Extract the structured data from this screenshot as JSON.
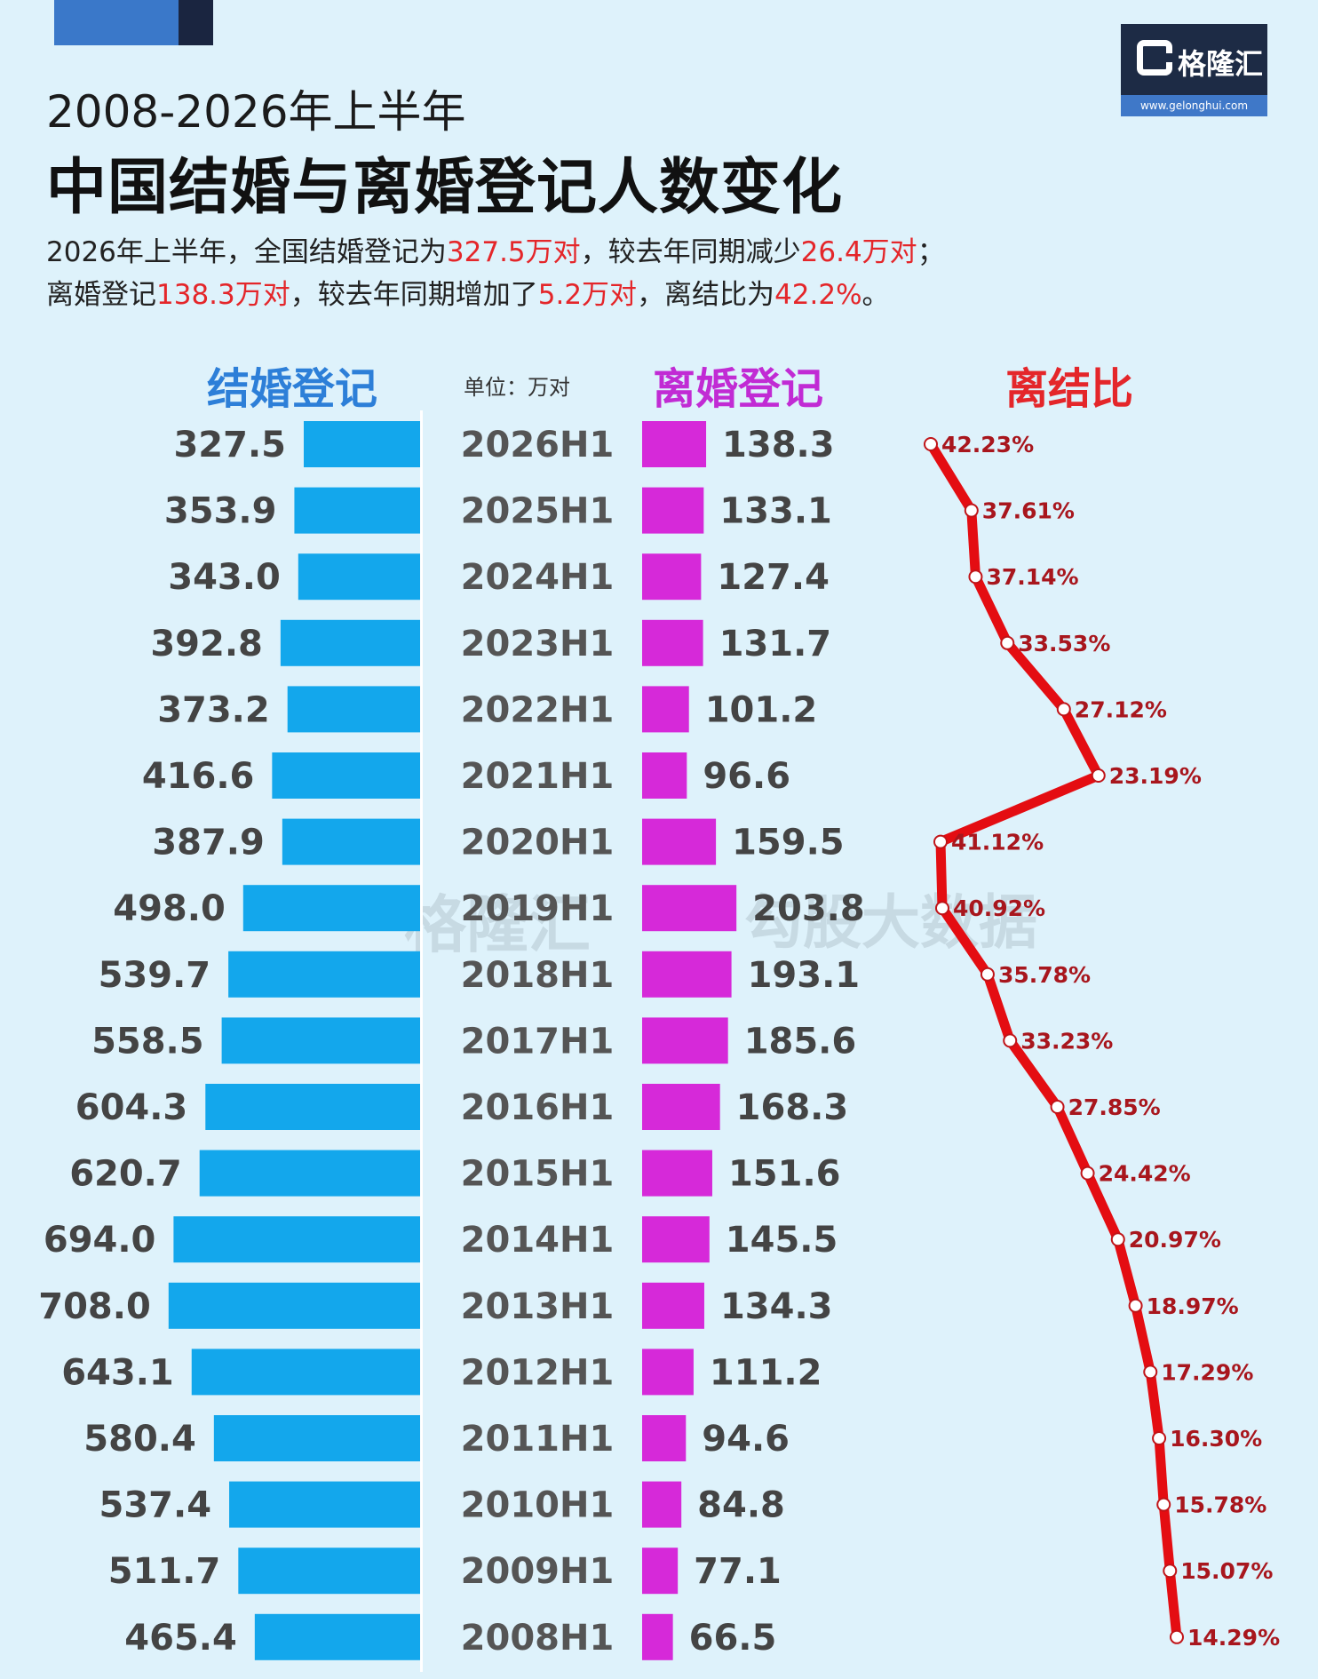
{
  "header": {
    "subtitle": "2008-2026年上半年",
    "title": "中国结婚与离婚登记人数变化",
    "desc_line1": [
      {
        "text": "2026年上半年，全国结婚登记为",
        "red": false
      },
      {
        "text": "327.5万对",
        "red": true
      },
      {
        "text": "，较去年同期减少",
        "red": false
      },
      {
        "text": "26.4万对",
        "red": true
      },
      {
        "text": "；",
        "red": false
      }
    ],
    "desc_line2": [
      {
        "text": "离婚登记",
        "red": false
      },
      {
        "text": "138.3万对",
        "red": true
      },
      {
        "text": "，较去年同期增加了",
        "red": false
      },
      {
        "text": "5.2万对",
        "red": true
      },
      {
        "text": "，离结比为",
        "red": false
      },
      {
        "text": "42.2%",
        "red": true
      },
      {
        "text": "。",
        "red": false
      }
    ]
  },
  "logo": {
    "name": "格隆汇",
    "url": "www.gelonghui.com"
  },
  "watermark": {
    "left": "格隆汇",
    "right": "勾股大数据",
    "right_url": "www.gogudata.com"
  },
  "colors": {
    "marriage": "#13a7ec",
    "divorce": "#d629d9",
    "ratio": "#e40d12"
  },
  "chart_data": {
    "type": "bar",
    "headers": {
      "marriage": "结婚登记",
      "unit": "单位：万对",
      "divorce": "离婚登记",
      "ratio": "离结比"
    },
    "categories": [
      "2026H1",
      "2025H1",
      "2024H1",
      "2023H1",
      "2022H1",
      "2021H1",
      "2020H1",
      "2019H1",
      "2018H1",
      "2017H1",
      "2016H1",
      "2015H1",
      "2014H1",
      "2013H1",
      "2012H1",
      "2011H1",
      "2010H1",
      "2009H1",
      "2008H1"
    ],
    "series": [
      {
        "name": "结婚登记",
        "values": [
          327.5,
          353.9,
          343.0,
          392.8,
          373.2,
          416.6,
          387.9,
          498.0,
          539.7,
          558.5,
          604.3,
          620.7,
          694.0,
          708.0,
          643.1,
          580.4,
          537.4,
          511.7,
          465.4
        ]
      },
      {
        "name": "离婚登记",
        "values": [
          138.3,
          133.1,
          127.4,
          131.7,
          101.2,
          96.6,
          159.5,
          203.8,
          193.1,
          185.6,
          168.3,
          151.6,
          145.5,
          134.3,
          111.2,
          94.6,
          84.8,
          77.1,
          66.5
        ]
      },
      {
        "name": "离结比",
        "values": [
          42.23,
          37.61,
          37.14,
          33.53,
          27.12,
          23.19,
          41.12,
          40.92,
          35.78,
          33.23,
          27.85,
          24.42,
          20.97,
          18.97,
          17.29,
          16.3,
          15.78,
          15.07,
          14.29
        ]
      }
    ],
    "marriage_labels": [
      "327.5",
      "353.9",
      "343.0",
      "392.8",
      "373.2",
      "416.6",
      "387.9",
      "498.0",
      "539.7",
      "558.5",
      "604.3",
      "620.7",
      "694.0",
      "708.0",
      "643.1",
      "580.4",
      "537.4",
      "511.7",
      "465.4"
    ],
    "divorce_labels": [
      "138.3",
      "133.1",
      "127.4",
      "131.7",
      "101.2",
      "96.6",
      "159.5",
      "203.8",
      "193.1",
      "185.6",
      "168.3",
      "151.6",
      "145.5",
      "134.3",
      "111.2",
      "94.6",
      "84.8",
      "77.1",
      "66.5"
    ],
    "ratio_labels": [
      "42.23%",
      "37.61%",
      "37.14%",
      "33.53%",
      "27.12%",
      "23.19%",
      "41.12%",
      "40.92%",
      "35.78%",
      "33.23%",
      "27.85%",
      "24.42%",
      "20.97%",
      "18.97%",
      "17.29%",
      "16.30%",
      "15.78%",
      "15.07%",
      "14.29%"
    ]
  }
}
